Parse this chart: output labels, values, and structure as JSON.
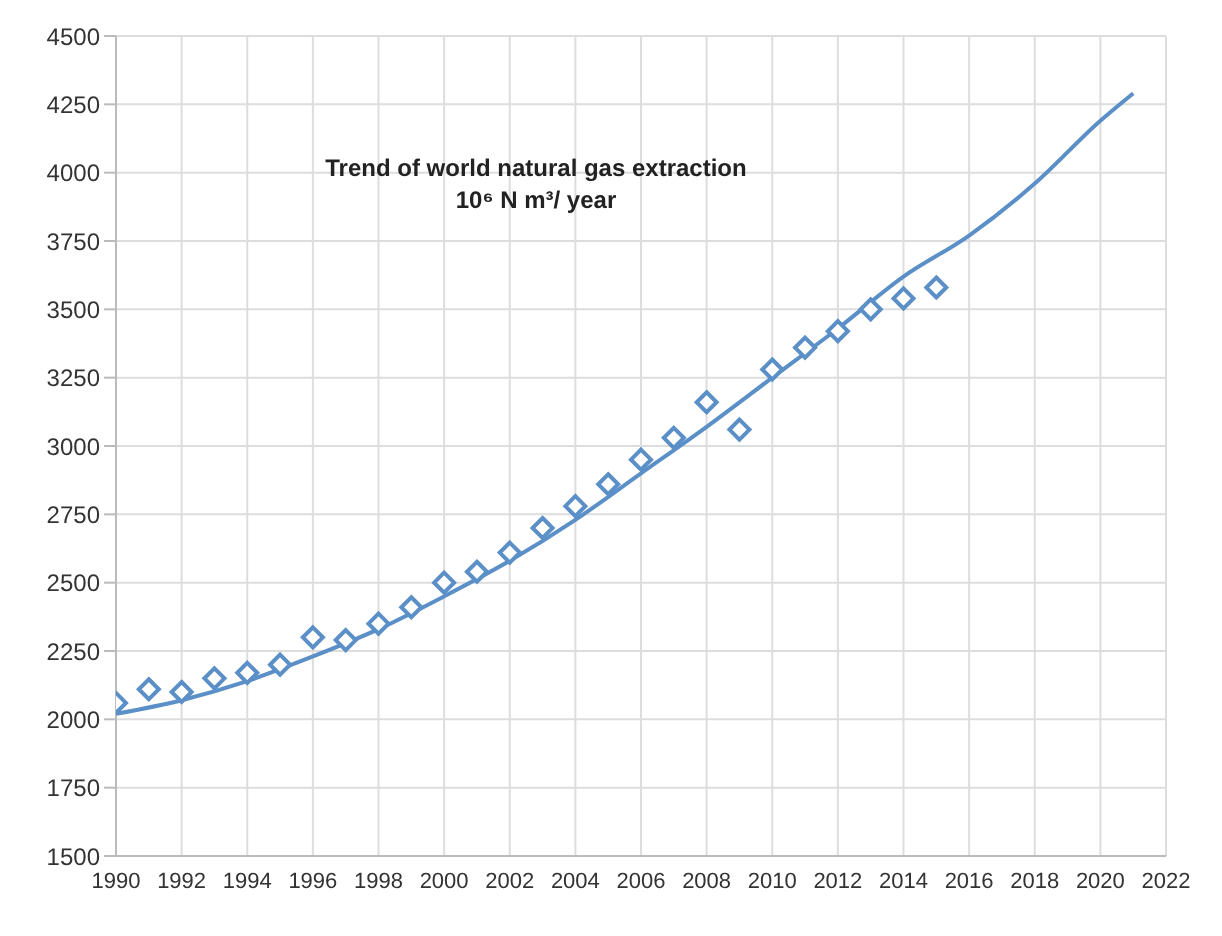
{
  "chart_data": {
    "type": "scatter",
    "title": "Trend of world natural gas extraction",
    "subtitle": "10⁶ N m³/ year",
    "marker": "diamond",
    "grid": true,
    "legend": false,
    "xlim": [
      1990,
      2022
    ],
    "xticks": [
      1990,
      1992,
      1994,
      1996,
      1998,
      2000,
      2002,
      2004,
      2006,
      2008,
      2010,
      2012,
      2014,
      2016,
      2018,
      2020,
      2022
    ],
    "ylim": [
      1500,
      4500
    ],
    "yticks": [
      1500,
      1750,
      2000,
      2250,
      2500,
      2750,
      3000,
      3250,
      3500,
      3750,
      4000,
      4250,
      4500
    ],
    "series": [
      {
        "color": "#5b8fc7",
        "x": [
          1990,
          1991,
          1992,
          1993,
          1994,
          1995,
          1996,
          1997,
          1998,
          1999,
          2000,
          2001,
          2002,
          2003,
          2004,
          2005,
          2006,
          2007,
          2008,
          2009,
          2010,
          2011,
          2012,
          2013,
          2014,
          2015
        ],
        "values": [
          2060,
          2110,
          2100,
          2150,
          2170,
          2200,
          2300,
          2290,
          2350,
          2410,
          2500,
          2540,
          2610,
          2700,
          2780,
          2860,
          2950,
          3030,
          3160,
          3060,
          3280,
          3360,
          3420,
          3500,
          3540,
          3580
        ]
      },
      {
        "type": "line",
        "marker": "none",
        "color": "#5b8fc7",
        "x": [
          1990,
          1992,
          1994,
          1996,
          1998,
          2000,
          2002,
          2004,
          2006,
          2008,
          2010,
          2012,
          2014,
          2016,
          2018,
          2020,
          2021
        ],
        "values": [
          2020,
          2070,
          2140,
          2230,
          2330,
          2450,
          2580,
          2730,
          2900,
          3070,
          3250,
          3430,
          3620,
          3770,
          3960,
          4190,
          4290
        ]
      }
    ]
  }
}
